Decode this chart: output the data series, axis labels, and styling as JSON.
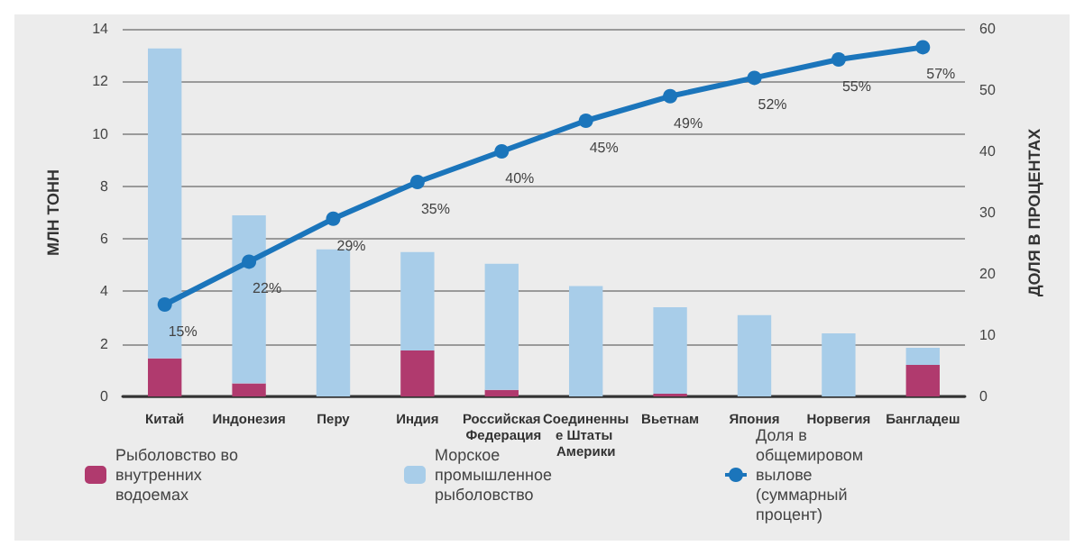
{
  "chart_data": {
    "type": "bar",
    "stacked": true,
    "categories": [
      "Китай",
      "Индонезия",
      "Перу",
      "Индия",
      "Российская Федерация",
      "Соединенные Штаты Америки",
      "Вьетнам",
      "Япония",
      "Норвегия",
      "Бангладеш"
    ],
    "series": [
      {
        "name": "Рыболовство во внутренних водоемах",
        "color": "#b03a6e",
        "values": [
          1.45,
          0.5,
          0,
          1.75,
          0.25,
          0,
          0.1,
          0,
          0,
          1.2
        ]
      },
      {
        "name": "Морское промышленное рыболовство",
        "color": "#a8cde9",
        "values": [
          11.8,
          6.4,
          5.6,
          3.75,
          4.8,
          4.2,
          3.3,
          3.1,
          2.4,
          0.65
        ]
      },
      {
        "name": "Доля в общемировом вылове (суммарный процент)",
        "type": "line",
        "axis": "y2",
        "color": "#1b75bb",
        "values": [
          15,
          22,
          29,
          35,
          40,
          45,
          49,
          52,
          55,
          57
        ],
        "value_labels": [
          "15%",
          "22%",
          "29%",
          "35%",
          "40%",
          "45%",
          "49%",
          "52%",
          "55%",
          "57%"
        ]
      }
    ],
    "ylabel": "МЛН ТОНН",
    "y2label": "ДОЛЯ В ПРОЦЕНТАХ",
    "ylim": [
      0,
      14
    ],
    "yticks": [
      0,
      2,
      4,
      6,
      8,
      10,
      12,
      14
    ],
    "y2lim": [
      0,
      60
    ],
    "y2ticks": [
      0,
      10,
      20,
      30,
      40,
      50,
      60
    ],
    "grid": "y",
    "legend": "bottom left",
    "marker": "circle",
    "line_style": "solid"
  }
}
